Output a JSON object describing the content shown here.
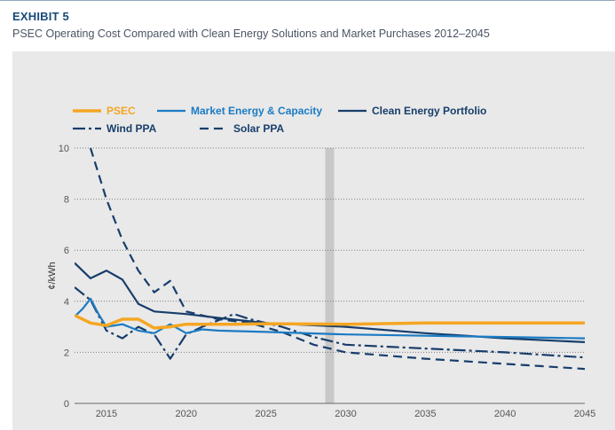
{
  "header": {
    "exhibit": "EXHIBIT 5",
    "subtitle": "PSEC Operating Cost Compared with Clean Energy Solutions and Market Purchases 2012–2045"
  },
  "colors": {
    "psec": "#f5a623",
    "market": "#1b7bc3",
    "navy": "#173e6b",
    "marker": "#c8c8c8",
    "grid": "#7a7a7a",
    "panel": "#e9e9e9"
  },
  "chart_data": {
    "type": "line",
    "ylabel": "¢/kWh",
    "xlabel": "",
    "xlim": [
      2013,
      2045
    ],
    "ylim": [
      0,
      10
    ],
    "x_ticks": [
      2015,
      2020,
      2025,
      2030,
      2035,
      2040,
      2045
    ],
    "y_ticks": [
      0,
      2,
      4,
      6,
      8,
      10
    ],
    "grid": "horizontal dotted",
    "legend": "top",
    "highlight_year": 2029,
    "series": [
      {
        "name": "PSEC",
        "style": "solid-thick",
        "color": "#f5a623",
        "points": [
          [
            2013,
            3.45
          ],
          [
            2014,
            3.15
          ],
          [
            2015,
            3.05
          ],
          [
            2016,
            3.3
          ],
          [
            2017,
            3.3
          ],
          [
            2018,
            2.95
          ],
          [
            2019,
            3.0
          ],
          [
            2020,
            3.1
          ],
          [
            2021,
            3.1
          ],
          [
            2022,
            3.1
          ],
          [
            2023,
            3.1
          ],
          [
            2025,
            3.12
          ],
          [
            2030,
            3.1
          ],
          [
            2035,
            3.15
          ],
          [
            2040,
            3.15
          ],
          [
            2045,
            3.15
          ]
        ]
      },
      {
        "name": "Market Energy & Capacity",
        "style": "solid",
        "color": "#1b7bc3",
        "points": [
          [
            2013,
            3.4
          ],
          [
            2013.5,
            3.7
          ],
          [
            2014,
            4.1
          ],
          [
            2014.5,
            3.5
          ],
          [
            2015,
            3.0
          ],
          [
            2016,
            3.1
          ],
          [
            2017,
            2.85
          ],
          [
            2018,
            2.75
          ],
          [
            2019,
            3.1
          ],
          [
            2020,
            2.75
          ],
          [
            2021,
            2.9
          ],
          [
            2022,
            2.85
          ],
          [
            2025,
            2.8
          ],
          [
            2030,
            2.7
          ],
          [
            2035,
            2.65
          ],
          [
            2040,
            2.6
          ],
          [
            2045,
            2.55
          ]
        ]
      },
      {
        "name": "Clean Energy Portfolio",
        "style": "solid",
        "color": "#173e6b",
        "points": [
          [
            2013,
            5.5
          ],
          [
            2014,
            4.9
          ],
          [
            2015,
            5.2
          ],
          [
            2016,
            4.85
          ],
          [
            2017,
            3.9
          ],
          [
            2018,
            3.6
          ],
          [
            2020,
            3.5
          ],
          [
            2022,
            3.35
          ],
          [
            2025,
            3.15
          ],
          [
            2030,
            3.0
          ],
          [
            2035,
            2.75
          ],
          [
            2040,
            2.55
          ],
          [
            2045,
            2.4
          ]
        ]
      },
      {
        "name": "Wind PPA",
        "style": "dashdot",
        "color": "#173e6b",
        "points": [
          [
            2013,
            4.55
          ],
          [
            2014,
            4.05
          ],
          [
            2015,
            2.85
          ],
          [
            2016,
            2.55
          ],
          [
            2017,
            3.0
          ],
          [
            2018,
            2.7
          ],
          [
            2019,
            1.75
          ],
          [
            2020,
            2.7
          ],
          [
            2021,
            3.0
          ],
          [
            2023,
            3.5
          ],
          [
            2024,
            3.3
          ],
          [
            2026,
            3.0
          ],
          [
            2028,
            2.6
          ],
          [
            2030,
            2.3
          ],
          [
            2035,
            2.15
          ],
          [
            2040,
            2.0
          ],
          [
            2045,
            1.8
          ]
        ]
      },
      {
        "name": "Solar PPA",
        "style": "dashed",
        "color": "#173e6b",
        "points": [
          [
            2014,
            10.0
          ],
          [
            2015,
            8.0
          ],
          [
            2016,
            6.4
          ],
          [
            2017,
            5.2
          ],
          [
            2018,
            4.35
          ],
          [
            2019,
            4.8
          ],
          [
            2020,
            3.6
          ],
          [
            2022,
            3.3
          ],
          [
            2024,
            3.15
          ],
          [
            2026,
            2.8
          ],
          [
            2028,
            2.3
          ],
          [
            2030,
            2.0
          ],
          [
            2035,
            1.75
          ],
          [
            2040,
            1.55
          ],
          [
            2045,
            1.35
          ]
        ]
      }
    ]
  }
}
